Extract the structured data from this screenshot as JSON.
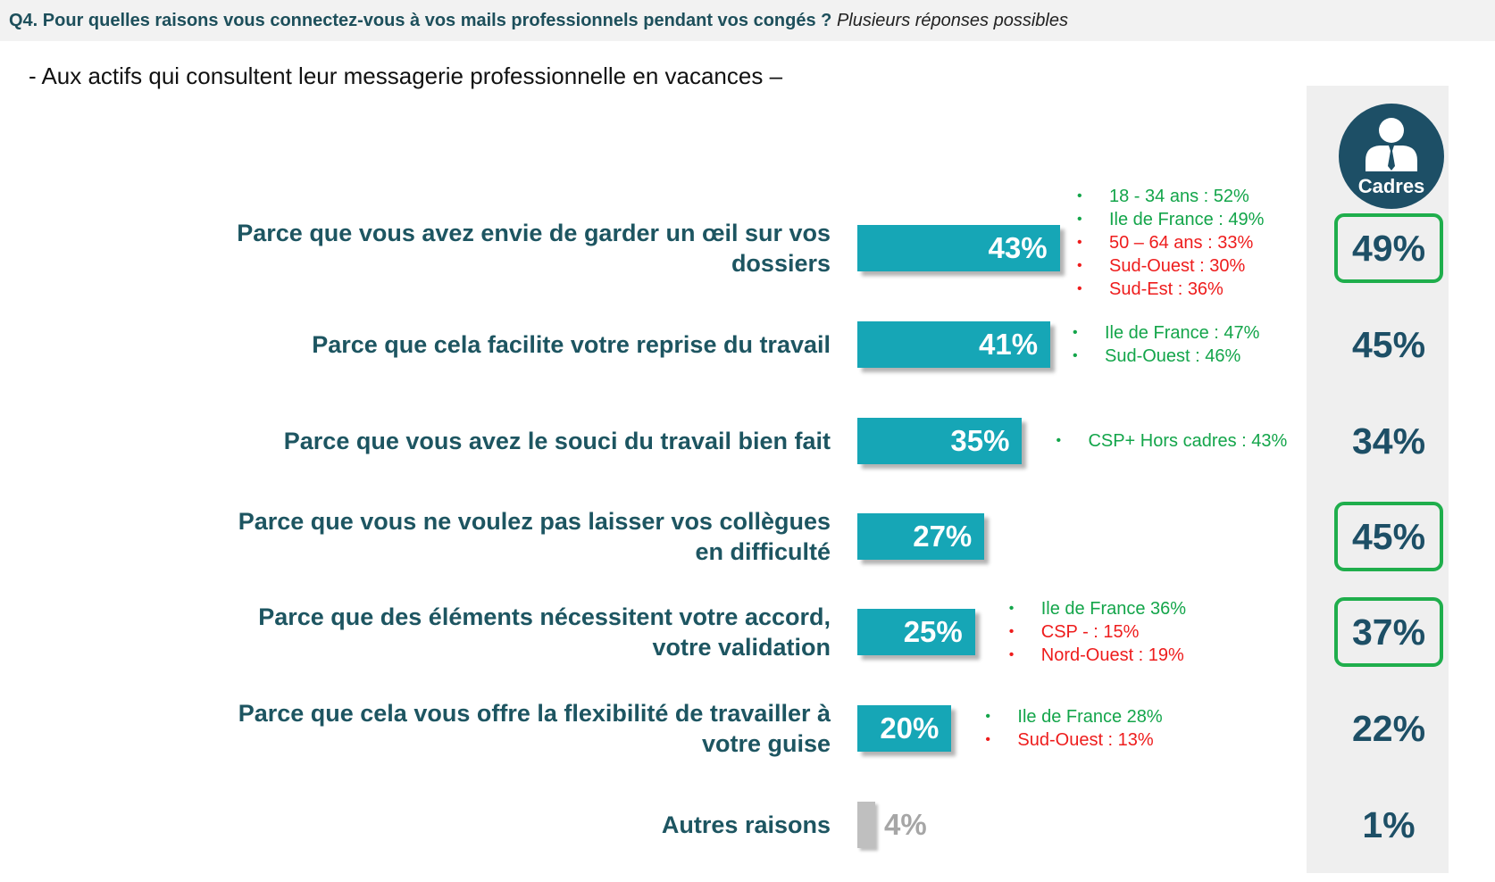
{
  "header": {
    "question": "Q4. Pour quelles raisons vous connectez-vous à vos mails professionnels pendant vos congés ?",
    "note": "Plusieurs réponses possibles"
  },
  "subtitle": "- Aux actifs qui consultent leur messagerie professionnelle en vacances –",
  "cadres": {
    "label": "Cadres",
    "icon": "businessman-icon",
    "values": [
      "49%",
      "45%",
      "34%",
      "45%",
      "37%",
      "22%",
      "1%"
    ]
  },
  "colors": {
    "bar": "#16a6b6",
    "bar_other": "#bfbfbf",
    "label": "#1d5561",
    "note_positive": "#13a54a",
    "note_negative": "#ee1c1c",
    "cadres_circle": "#1d4f66",
    "highlight_border": "#1fae4c"
  },
  "chart_data": {
    "type": "bar",
    "orientation": "horizontal",
    "xlim": [
      0,
      100
    ],
    "categories": [
      "Parce que vous avez envie de garder un œil sur vos dossiers",
      "Parce que cela facilite votre reprise du travail",
      "Parce que vous avez le souci du travail bien fait",
      "Parce que vous ne voulez pas laisser vos collègues en difficulté",
      "Parce que des éléments nécessitent votre accord, votre validation",
      "Parce que cela vous offre la flexibilité de travailler à votre guise",
      "Autres raisons"
    ],
    "values": [
      43,
      41,
      35,
      27,
      25,
      20,
      4
    ],
    "value_labels": [
      "43%",
      "41%",
      "35%",
      "27%",
      "25%",
      "20%",
      "4%"
    ],
    "cadres_values": [
      49,
      45,
      34,
      45,
      37,
      22,
      1
    ],
    "cadres_highlighted": [
      true,
      false,
      false,
      true,
      true,
      false,
      false
    ],
    "annotations": [
      [
        {
          "text": "18 - 34 ans : 52%",
          "tone": "positive"
        },
        {
          "text": "Ile de France : 49%",
          "tone": "positive"
        },
        {
          "text": "50 – 64 ans : 33%",
          "tone": "negative"
        },
        {
          "text": "Sud-Ouest : 30%",
          "tone": "negative"
        },
        {
          "text": "Sud-Est : 36%",
          "tone": "negative"
        }
      ],
      [
        {
          "text": "Ile de France : 47%",
          "tone": "positive"
        },
        {
          "text": "Sud-Ouest : 46%",
          "tone": "positive"
        }
      ],
      [
        {
          "text": "CSP+ Hors cadres : 43%",
          "tone": "positive"
        }
      ],
      [],
      [
        {
          "text": "Ile de France 36%",
          "tone": "positive"
        },
        {
          "text": "CSP - : 15%",
          "tone": "negative"
        },
        {
          "text": "Nord-Ouest : 19%",
          "tone": "negative"
        }
      ],
      [
        {
          "text": "Ile de France 28%",
          "tone": "positive"
        },
        {
          "text": "Sud-Ouest : 13%",
          "tone": "negative"
        }
      ],
      []
    ]
  }
}
